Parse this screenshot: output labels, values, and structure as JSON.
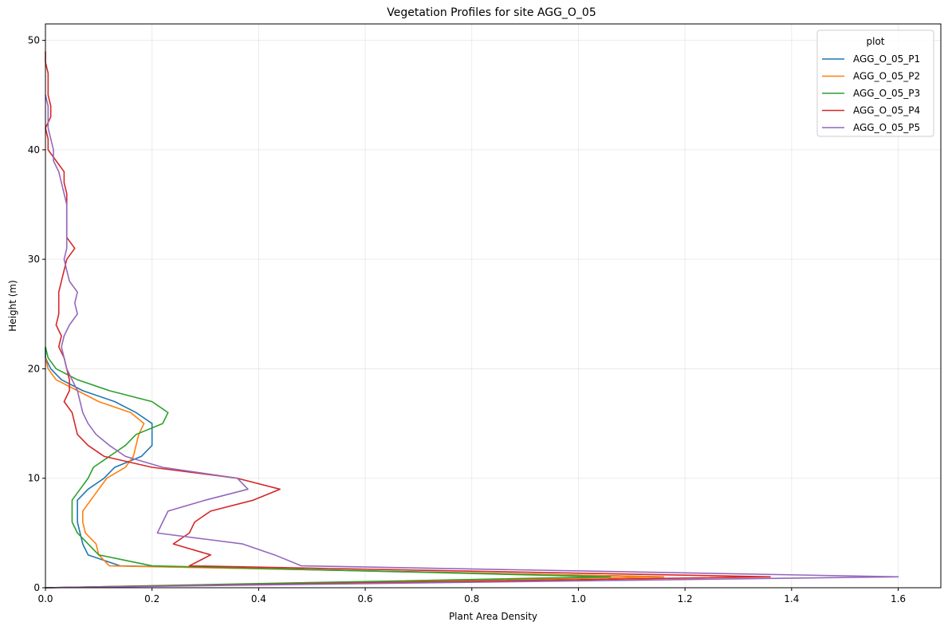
{
  "chart_data": {
    "type": "line",
    "title": "Vegetation Profiles for site AGG_O_05",
    "xlabel": "Plant Area Density",
    "ylabel": "Height (m)",
    "xlim": [
      0,
      1.68
    ],
    "ylim": [
      0,
      51.5
    ],
    "x_ticks": [
      "0.0",
      "0.2",
      "0.4",
      "0.6",
      "0.8",
      "1.0",
      "1.2",
      "1.4",
      "1.6"
    ],
    "x_tick_values": [
      0,
      0.2,
      0.4,
      0.6,
      0.8,
      1.0,
      1.2,
      1.4,
      1.6
    ],
    "y_ticks": [
      "0",
      "10",
      "20",
      "30",
      "40",
      "50"
    ],
    "y_tick_values": [
      0,
      10,
      20,
      30,
      40,
      50
    ],
    "grid": true,
    "legend": {
      "title": "plot",
      "placement": "top-right"
    },
    "series": [
      {
        "name": "AGG_O_05_P1",
        "color": "#1f77b4",
        "points": [
          [
            0.0,
            0
          ],
          [
            1.16,
            1
          ],
          [
            0.14,
            2
          ],
          [
            0.08,
            3
          ],
          [
            0.07,
            4
          ],
          [
            0.065,
            5
          ],
          [
            0.06,
            6
          ],
          [
            0.06,
            7
          ],
          [
            0.06,
            8
          ],
          [
            0.08,
            9
          ],
          [
            0.11,
            10
          ],
          [
            0.13,
            11
          ],
          [
            0.18,
            12
          ],
          [
            0.2,
            13
          ],
          [
            0.2,
            14
          ],
          [
            0.2,
            15
          ],
          [
            0.17,
            16
          ],
          [
            0.13,
            17
          ],
          [
            0.07,
            18
          ],
          [
            0.03,
            19
          ],
          [
            0.01,
            20
          ],
          [
            0.0,
            21
          ],
          [
            0.0,
            22
          ]
        ]
      },
      {
        "name": "AGG_O_05_P2",
        "color": "#ff7f0e",
        "points": [
          [
            0.0,
            0
          ],
          [
            1.16,
            1
          ],
          [
            0.12,
            2
          ],
          [
            0.1,
            3
          ],
          [
            0.095,
            4
          ],
          [
            0.075,
            5
          ],
          [
            0.07,
            6
          ],
          [
            0.07,
            7
          ],
          [
            0.085,
            8
          ],
          [
            0.1,
            9
          ],
          [
            0.115,
            10
          ],
          [
            0.15,
            11
          ],
          [
            0.165,
            12
          ],
          [
            0.17,
            13
          ],
          [
            0.175,
            14
          ],
          [
            0.185,
            15
          ],
          [
            0.16,
            16
          ],
          [
            0.1,
            17
          ],
          [
            0.06,
            18
          ],
          [
            0.02,
            19
          ],
          [
            0.005,
            20
          ],
          [
            0.0,
            21
          ]
        ]
      },
      {
        "name": "AGG_O_05_P3",
        "color": "#2ca02c",
        "points": [
          [
            0.0,
            0
          ],
          [
            1.06,
            1
          ],
          [
            0.2,
            2
          ],
          [
            0.1,
            3
          ],
          [
            0.08,
            4
          ],
          [
            0.06,
            5
          ],
          [
            0.05,
            6
          ],
          [
            0.05,
            7
          ],
          [
            0.05,
            8
          ],
          [
            0.065,
            9
          ],
          [
            0.08,
            10
          ],
          [
            0.09,
            11
          ],
          [
            0.12,
            12
          ],
          [
            0.15,
            13
          ],
          [
            0.17,
            14
          ],
          [
            0.22,
            15
          ],
          [
            0.23,
            16
          ],
          [
            0.2,
            17
          ],
          [
            0.12,
            18
          ],
          [
            0.06,
            19
          ],
          [
            0.02,
            20
          ],
          [
            0.005,
            21
          ],
          [
            0.0,
            22
          ]
        ]
      },
      {
        "name": "AGG_O_05_P4",
        "color": "#d62728",
        "points": [
          [
            0.0,
            0
          ],
          [
            1.36,
            1
          ],
          [
            0.27,
            2
          ],
          [
            0.31,
            3
          ],
          [
            0.24,
            4
          ],
          [
            0.27,
            5
          ],
          [
            0.28,
            6
          ],
          [
            0.31,
            7
          ],
          [
            0.39,
            8
          ],
          [
            0.44,
            9
          ],
          [
            0.36,
            10
          ],
          [
            0.2,
            11
          ],
          [
            0.11,
            12
          ],
          [
            0.08,
            13
          ],
          [
            0.06,
            14
          ],
          [
            0.055,
            15
          ],
          [
            0.05,
            16
          ],
          [
            0.035,
            17
          ],
          [
            0.045,
            18
          ],
          [
            0.045,
            19
          ],
          [
            0.04,
            20
          ],
          [
            0.035,
            21
          ],
          [
            0.025,
            22
          ],
          [
            0.03,
            23
          ],
          [
            0.02,
            24
          ],
          [
            0.025,
            25
          ],
          [
            0.025,
            26
          ],
          [
            0.025,
            27
          ],
          [
            0.03,
            28
          ],
          [
            0.035,
            29
          ],
          [
            0.04,
            30
          ],
          [
            0.055,
            31
          ],
          [
            0.04,
            32
          ],
          [
            0.04,
            33
          ],
          [
            0.04,
            34
          ],
          [
            0.04,
            35
          ],
          [
            0.04,
            36
          ],
          [
            0.035,
            37
          ],
          [
            0.035,
            38
          ],
          [
            0.02,
            39
          ],
          [
            0.005,
            40
          ],
          [
            0.005,
            41
          ],
          [
            0.0,
            42
          ],
          [
            0.01,
            43
          ],
          [
            0.01,
            44
          ],
          [
            0.005,
            45
          ],
          [
            0.005,
            46
          ],
          [
            0.005,
            47
          ],
          [
            0.0,
            48
          ],
          [
            0.0,
            49
          ]
        ]
      },
      {
        "name": "AGG_O_05_P5",
        "color": "#9467bd",
        "points": [
          [
            0.0,
            0
          ],
          [
            1.6,
            1
          ],
          [
            0.48,
            2
          ],
          [
            0.43,
            3
          ],
          [
            0.37,
            4
          ],
          [
            0.21,
            5
          ],
          [
            0.22,
            6
          ],
          [
            0.23,
            7
          ],
          [
            0.3,
            8
          ],
          [
            0.38,
            9
          ],
          [
            0.36,
            10
          ],
          [
            0.22,
            11
          ],
          [
            0.15,
            12
          ],
          [
            0.12,
            13
          ],
          [
            0.095,
            14
          ],
          [
            0.08,
            15
          ],
          [
            0.07,
            16
          ],
          [
            0.065,
            17
          ],
          [
            0.06,
            18
          ],
          [
            0.05,
            19
          ],
          [
            0.04,
            20
          ],
          [
            0.035,
            21
          ],
          [
            0.03,
            22
          ],
          [
            0.035,
            23
          ],
          [
            0.045,
            24
          ],
          [
            0.06,
            25
          ],
          [
            0.055,
            26
          ],
          [
            0.06,
            27
          ],
          [
            0.045,
            28
          ],
          [
            0.04,
            29
          ],
          [
            0.035,
            30
          ],
          [
            0.04,
            31
          ],
          [
            0.04,
            32
          ],
          [
            0.04,
            33
          ],
          [
            0.04,
            34
          ],
          [
            0.04,
            35
          ],
          [
            0.035,
            36
          ],
          [
            0.03,
            37
          ],
          [
            0.025,
            38
          ],
          [
            0.015,
            39
          ],
          [
            0.015,
            40
          ],
          [
            0.01,
            41
          ],
          [
            0.005,
            42
          ],
          [
            0.005,
            43
          ],
          [
            0.005,
            44
          ],
          [
            0.0,
            45
          ]
        ]
      }
    ]
  }
}
